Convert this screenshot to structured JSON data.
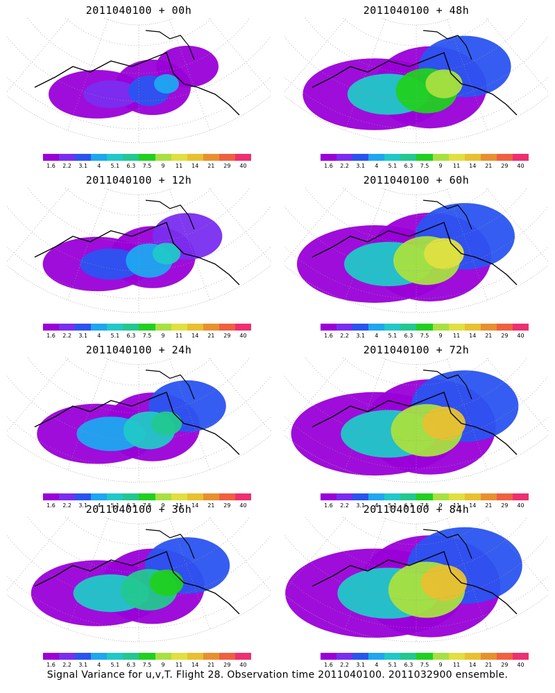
{
  "colorbar": {
    "colors": [
      "#9a00d8",
      "#7a2df0",
      "#2a54f0",
      "#1ea6f0",
      "#20c8c8",
      "#22c890",
      "#20d020",
      "#a8e040",
      "#e0e040",
      "#e8c030",
      "#e89030",
      "#ef6040",
      "#ee2f70"
    ],
    "labels": [
      "1.6",
      "2.2",
      "3.1",
      "4",
      "5.1",
      "6.3",
      "7.5",
      "9",
      "11",
      "14",
      "21",
      "29",
      "40"
    ]
  },
  "panels": [
    {
      "title": "2011040100 + 00h",
      "level": 0
    },
    {
      "title": "2011040100 + 48h",
      "level": 4
    },
    {
      "title": "2011040100 + 12h",
      "level": 1
    },
    {
      "title": "2011040100 + 60h",
      "level": 5
    },
    {
      "title": "2011040100 + 24h",
      "level": 2
    },
    {
      "title": "2011040100 + 72h",
      "level": 6
    },
    {
      "title": "2011040100 + 36h",
      "level": 3
    },
    {
      "title": "2011040100 + 84h",
      "level": 7
    }
  ],
  "footer": "Signal Variance for u,v,T. Flight 28. Observation time 2011040100. 2011032900 ensemble."
}
